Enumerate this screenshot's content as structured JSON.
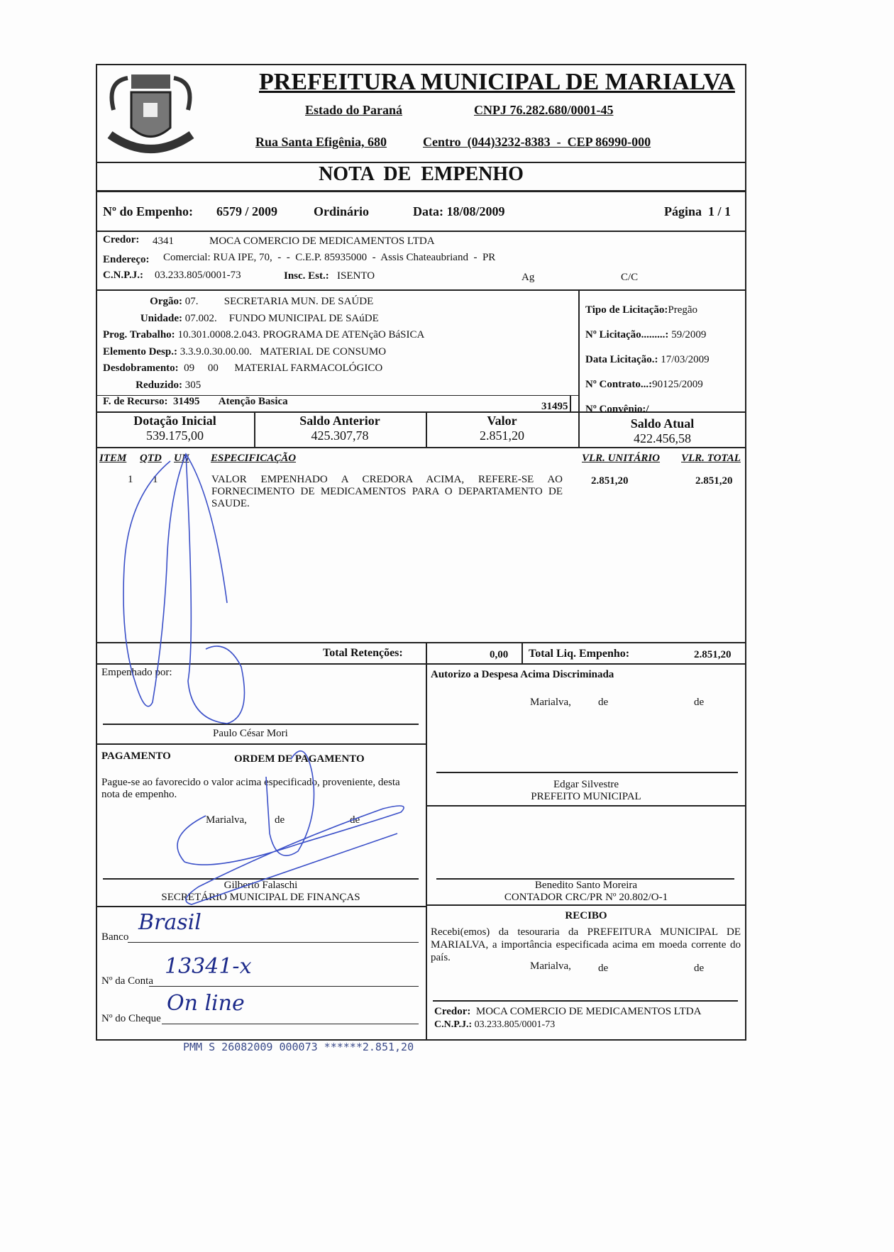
{
  "header": {
    "title": "PREFEITURA MUNICIPAL DE MARIALVA",
    "state": "Estado do Paraná",
    "cnpj": "CNPJ 76.282.680/0001-45",
    "address": "Rua Santa Efigênia, 680",
    "district_phone_cep": "Centro  (044)3232-8383  -  CEP 86990-000",
    "logo": "coat-of-arms-marialva"
  },
  "doc_title": "NOTA  DE  EMPENHO",
  "empenho": {
    "label": "Nº do Empenho:",
    "number": "6579 / 2009",
    "type": "Ordinário",
    "date": "Data: 18/08/2009",
    "page": "Página  1 / 1"
  },
  "credor": {
    "label": "Credor:",
    "code": "4341",
    "name": "MOCA COMERCIO DE MEDICAMENTOS LTDA",
    "address_label": "Endereço:",
    "address": "Comercial: RUA IPE, 70,  -  -  C.E.P. 85935000  -  Assis Chateaubriand  -  PR",
    "cnpj_label": "C.N.P.J.:",
    "cnpj": "03.233.805/0001-73",
    "ie_label": "Insc. Est.:",
    "ie": "ISENTO",
    "ag_label": "Ag",
    "cc_label": "C/C"
  },
  "dotacao": {
    "orgao_label": "Orgão:",
    "orgao_code": "07.",
    "orgao_name": "SECRETARIA MUN. DE SAÚDE",
    "unidade_label": "Unidade:",
    "unidade_code": "07.002.",
    "unidade_name": "FUNDO MUNICIPAL DE SAúDE",
    "prog_label": "Prog. Trabalho:",
    "prog_code": "10.301.0008.2.043.",
    "prog_name": "PROGRAMA DE ATENçãO BáSICA",
    "elem_label": "Elemento Desp.:",
    "elem_code": "3.3.9.0.30.00.00.",
    "elem_name": "MATERIAL DE CONSUMO",
    "desd_label": "Desdobramento:",
    "desd_code": "09     00",
    "desd_name": "MATERIAL FARMACOLÓGICO",
    "red_label": "Reduzido:",
    "red_code": "305",
    "rec_label": "F. de Recurso:",
    "rec_code": "31495",
    "rec_name": "Atenção Basica",
    "rec_code2": "31495"
  },
  "licitacao": {
    "tipo_label": "Tipo de Licitação:",
    "tipo": "Pregão",
    "num_label": "Nº Licitação.........:",
    "num": "59/2009",
    "data_label": "Data Licitação.:",
    "data": "17/03/2009",
    "contrato_label": "Nº Contrato...:",
    "contrato": "90125/2009",
    "convenio_label": "Nº Convênio:/"
  },
  "saldos": [
    {
      "label": "Dotação Inicial",
      "value": "539.175,00"
    },
    {
      "label": "Saldo Anterior",
      "value": "425.307,78"
    },
    {
      "label": "Valor",
      "value": "2.851,20"
    },
    {
      "label": "Saldo Atual",
      "value": "422.456,58"
    }
  ],
  "items": {
    "headers": {
      "item": "ITEM",
      "qtd": "QTD",
      "un": "UN",
      "espec": "ESPECIFICAÇÃO",
      "unit": "VLR. UNITÁRIO",
      "total": "VLR. TOTAL"
    },
    "rows": [
      {
        "item": "1",
        "qtd": "1",
        "un": "",
        "espec": "VALOR  EMPENHADO  A  CREDORA  ACIMA,  REFERE-SE  AO FORNECIMENTO DE MEDICAMENTOS PARA O DEPARTAMENTO DE SAUDE.",
        "unit": "2.851,20",
        "total": "2.851,20"
      }
    ]
  },
  "totals": {
    "ret_label": "Total Retenções:",
    "ret": "0,00",
    "liq_label": "Total Liq. Empenho:",
    "liq": "2.851,20"
  },
  "empenhado": {
    "label": "Empenhado por:",
    "name": "Paulo César Mori"
  },
  "autorizo": {
    "label": "Autorizo a Despesa Acima Discriminada",
    "city": "Marialva,",
    "de1": "de",
    "de2": "de",
    "name": "Edgar Silvestre",
    "role": "PREFEITO MUNICIPAL"
  },
  "contador": {
    "name": "Benedito Santo Moreira",
    "role": "CONTADOR CRC/PR Nº 20.802/O-1"
  },
  "pagamento": {
    "label": "PAGAMENTO",
    "ordem": "ORDEM DE PAGAMENTO",
    "text": "Pague-se ao favorecido o valor acima especificado, proveniente, desta nota de empenho.",
    "city": "Marialva,",
    "de1": "de",
    "de2": "de",
    "name": "Gilberto Falaschi",
    "role": "SECRETÁRIO MUNICIPAL DE FINANÇAS"
  },
  "recibo": {
    "label": "RECIBO",
    "text": "Recebi(emos) da tesouraria da PREFEITURA MUNICIPAL DE MARIALVA, a importância especificada acima em moeda corrente do país.",
    "city": "Marialva,",
    "de1": "de",
    "de2": "de",
    "credor_label": "Credor:",
    "credor": "MOCA COMERCIO DE MEDICAMENTOS LTDA",
    "cnpj_label": "C.N.P.J.:",
    "cnpj": "03.233.805/0001-73"
  },
  "banco": {
    "banco_label": "Banco",
    "banco": "Brasil",
    "conta_label": "Nº da Conta",
    "conta": "13341-x",
    "cheque_label": "Nº do Cheque",
    "cheque": "On line"
  },
  "stamp": "PMM S 26082009 000073 ******2.851,20",
  "colors": {
    "ink": "#111111",
    "pen": "#3a4fc8"
  }
}
